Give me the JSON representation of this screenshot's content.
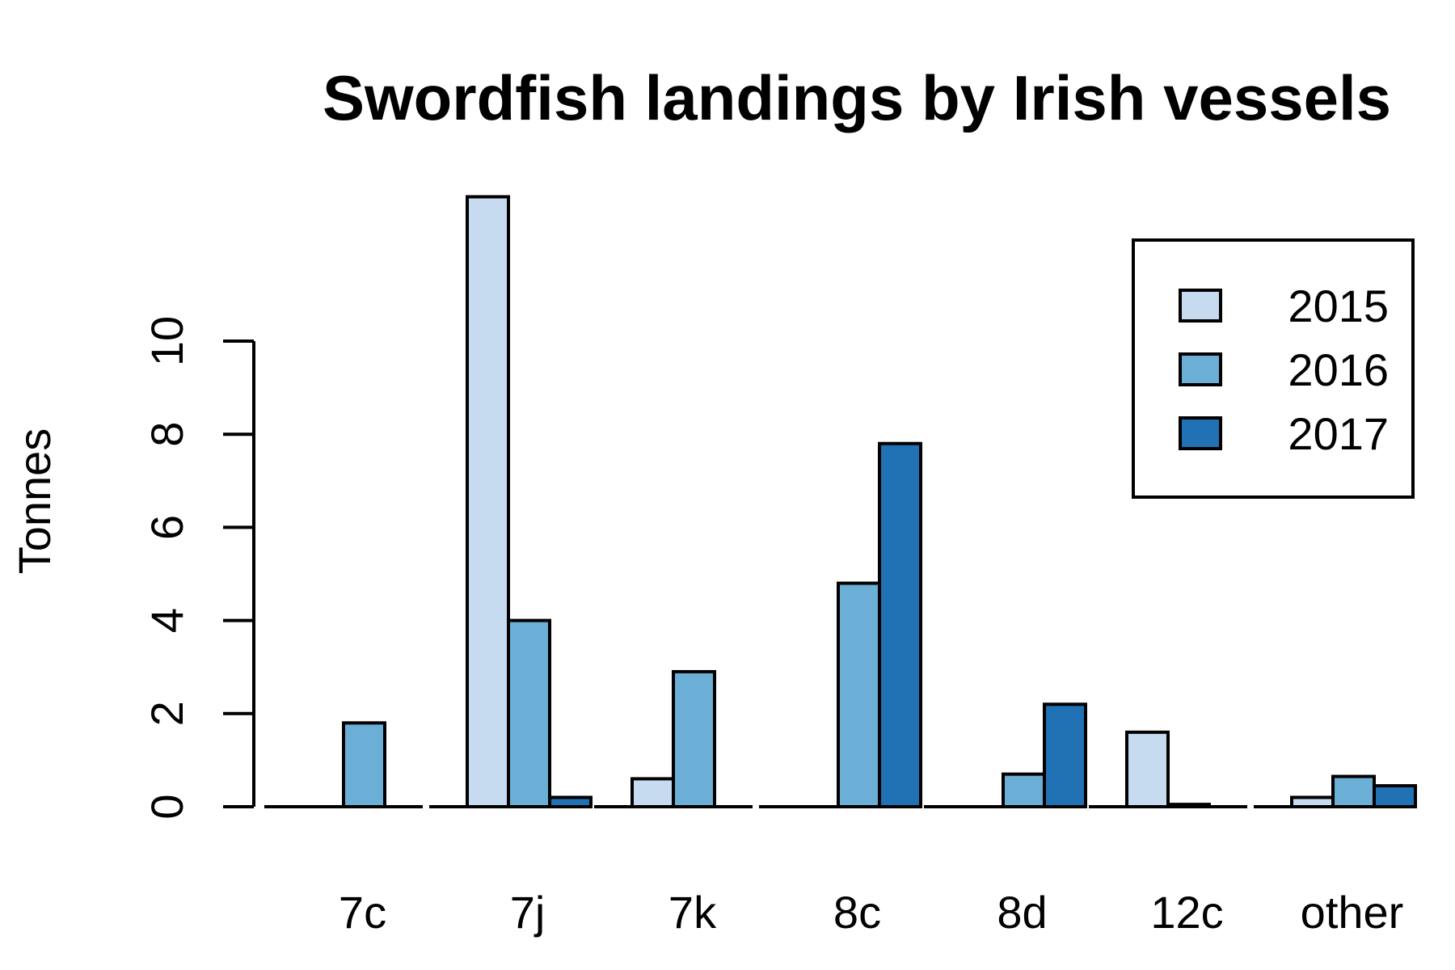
{
  "chart_data": {
    "type": "bar",
    "title": "Swordfish landings by Irish vessels",
    "xlabel": "",
    "ylabel": "Tonnes",
    "categories": [
      "7c",
      "7j",
      "7k",
      "8c",
      "8d",
      "12c",
      "other"
    ],
    "series": [
      {
        "name": "2015",
        "color": "#c6dbef",
        "values": [
          0,
          13.1,
          0.6,
          0,
          0,
          1.6,
          0.2
        ]
      },
      {
        "name": "2016",
        "color": "#6baed6",
        "values": [
          1.8,
          4.0,
          2.9,
          4.8,
          0.7,
          0.05,
          0.65
        ]
      },
      {
        "name": "2017",
        "color": "#2171b5",
        "values": [
          0,
          0.2,
          0,
          7.8,
          2.2,
          0,
          0.45
        ]
      }
    ],
    "yticks": [
      0,
      2,
      4,
      6,
      8,
      10
    ],
    "ylim": [
      0,
      13.1
    ],
    "legend_position": "top-right",
    "grid": false
  }
}
